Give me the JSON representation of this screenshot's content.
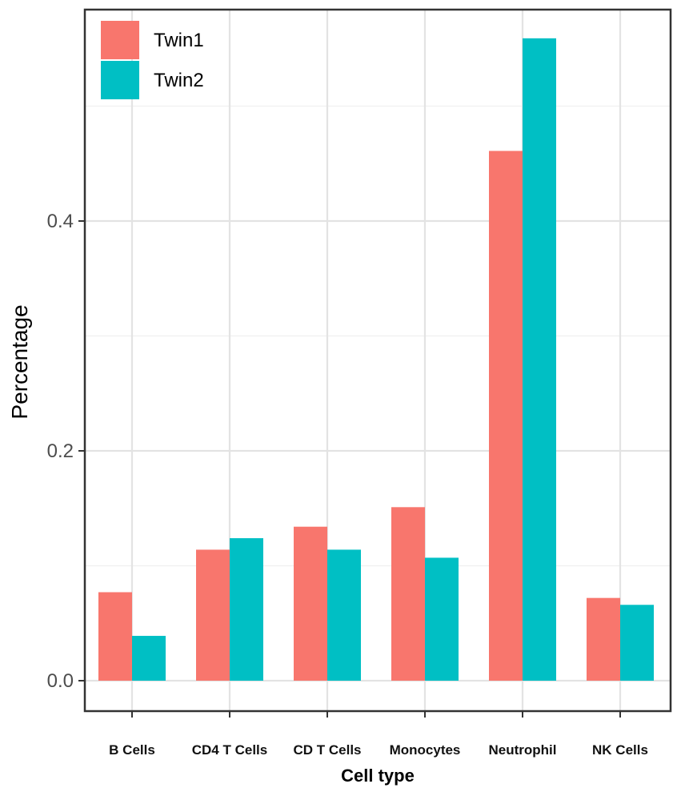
{
  "chart_data": {
    "type": "bar",
    "categories": [
      "B Cells",
      "CD4 T Cells",
      "CD T Cells",
      "Monocytes",
      "Neutrophil",
      "NK Cells"
    ],
    "series": [
      {
        "name": "Twin1",
        "color": "#f8766d",
        "values": [
          0.077,
          0.114,
          0.134,
          0.151,
          0.461,
          0.072
        ]
      },
      {
        "name": "Twin2",
        "color": "#00bfc4",
        "values": [
          0.039,
          0.124,
          0.114,
          0.107,
          0.559,
          0.066
        ]
      }
    ],
    "xlabel": "Cell type",
    "ylabel": "Percentage",
    "ylim": [
      0,
      0.58
    ],
    "yticks": [
      "0.0",
      "0.2",
      "0.4"
    ],
    "ytick_values": [
      0,
      0.2,
      0.4
    ],
    "grid": true,
    "legend_position": "top-left"
  }
}
